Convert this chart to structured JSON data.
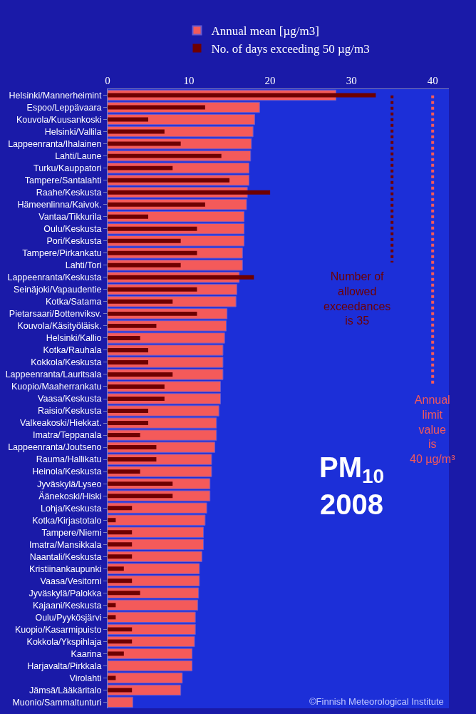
{
  "chart_data": {
    "type": "bar",
    "orientation": "horizontal",
    "categories": [
      "Helsinki/Mannerheimint",
      "Espoo/Leppävaara",
      "Kouvola/Kuusankoski",
      "Helsinki/Vallila",
      "Lappeenranta/Ihalainen",
      "Lahti/Laune",
      "Turku/Kauppatori",
      "Tampere/Santalahti",
      "Raahe/Keskusta",
      "Hämeenlinna/Kaivok.",
      "Vantaa/Tikkurila",
      "Oulu/Keskusta",
      "Pori/Keskusta",
      "Tampere/Pirkankatu",
      "Lahti/Tori",
      "Lappeenranta/Keskusta",
      "Seinäjoki/Vapaudentie",
      "Kotka/Satama",
      "Pietarsaari/Bottenviksv.",
      "Kouvola/Käsityöläisk.",
      "Helsinki/Kallio",
      "Kotka/Rauhala",
      "Kokkola/Keskusta",
      "Lappeenranta/Lauritsala",
      "Kuopio/Maaherrankatu",
      "Vaasa/Keskusta",
      "Raisio/Keskusta",
      "Valkeakoski/Hiekkat.",
      "Imatra/Teppanala",
      "Lappeenranta/Joutseno",
      "Rauma/Hallikatu",
      "Heinola/Keskusta",
      "Jyväskylä/Lyseo",
      "Äänekoski/Hiski",
      "Lohja/Keskusta",
      "Kotka/Kirjastotalo",
      "Tampere/Niemi",
      "Imatra/Mansikkala",
      "Naantali/Keskusta",
      "Kristiinankaupunki",
      "Vaasa/Vesitorni",
      "Jyväskylä/Palokka",
      "Kajaani/Keskusta",
      "Oulu/Pyykösjärvi",
      "Kuopio/Kasarmipuisto",
      "Kokkola/Ykspihlaja",
      "Kaarina",
      "Harjavalta/Pirkkala",
      "Virolahti",
      "Jämsä/Lääkäritalo",
      "Muonio/Sammaltunturi"
    ],
    "series": [
      {
        "name": "Annual mean [µg/m3]",
        "color": "#f45a5a",
        "values": [
          28.1,
          18.7,
          18.1,
          17.9,
          17.7,
          17.6,
          17.4,
          17.4,
          17.2,
          17.1,
          16.8,
          16.8,
          16.8,
          16.6,
          16.6,
          16.2,
          15.9,
          15.8,
          14.7,
          14.6,
          14.4,
          14.2,
          14.2,
          14.2,
          13.9,
          13.9,
          13.7,
          13.4,
          13.4,
          13.2,
          12.8,
          12.8,
          12.6,
          12.6,
          12.2,
          12.0,
          11.8,
          11.8,
          11.6,
          11.3,
          11.3,
          11.2,
          11.1,
          10.8,
          10.8,
          10.7,
          10.4,
          10.4,
          9.2,
          9.0,
          3.1
        ]
      },
      {
        "name": "No. of days exceeding 50 µg/m3",
        "color": "#6e0000",
        "values": [
          33,
          12,
          5,
          7,
          9,
          14,
          8,
          15,
          20,
          12,
          5,
          11,
          9,
          11,
          9,
          18,
          11,
          8,
          11,
          6,
          4,
          5,
          5,
          8,
          7,
          7,
          5,
          5,
          4,
          6,
          6,
          4,
          8,
          8,
          3,
          1,
          3,
          3,
          3,
          2,
          3,
          4,
          1,
          1,
          3,
          3,
          2,
          0,
          1,
          3,
          0
        ]
      }
    ],
    "xlim": [
      0,
      42
    ],
    "xticks": [
      0,
      10,
      20,
      30,
      40
    ],
    "grid": false,
    "legend": "top",
    "ref_lines": [
      {
        "axis": "x",
        "value": 35,
        "label": "Number of\nallowed\nexceedances\nis 35",
        "color": "#6e0000",
        "line_style": "dotted"
      },
      {
        "axis": "x",
        "value": 40,
        "label": "Annual\nlimit\nvalue\nis\n40 µg/m³",
        "color": "#f45a5a",
        "line_style": "dotted"
      }
    ],
    "annotations": [
      "PM$_{10}$\n2008",
      "©Finnish Meteorological Institute"
    ]
  }
}
